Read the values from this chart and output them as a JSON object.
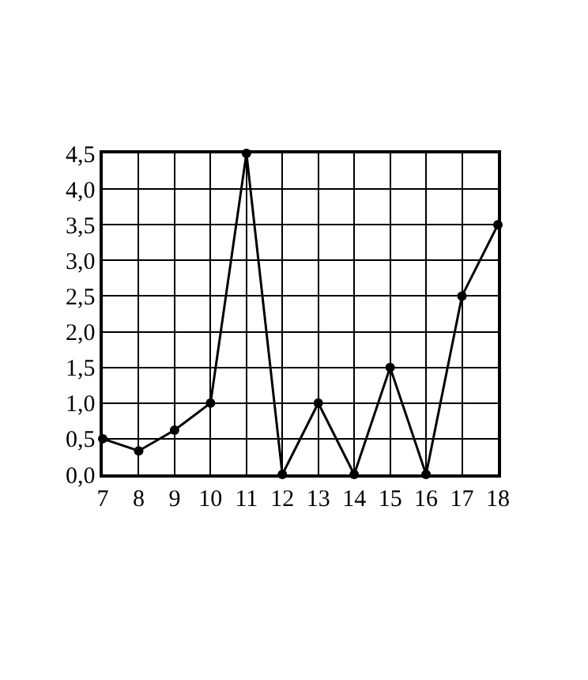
{
  "chart_data": {
    "type": "line",
    "x": [
      7,
      8,
      9,
      10,
      11,
      12,
      13,
      14,
      15,
      16,
      17,
      18
    ],
    "values": [
      0.5,
      0.33,
      0.62,
      1.0,
      4.5,
      0,
      1.0,
      0,
      1.5,
      0,
      2.5,
      3.5
    ],
    "color": "#000000",
    "marker": "circle",
    "line_style": "solid",
    "grid": true,
    "xlim": [
      7,
      18
    ],
    "xticks": [
      7,
      8,
      9,
      10,
      11,
      12,
      13,
      14,
      15,
      16,
      17,
      18
    ],
    "ylim": [
      0,
      4.5
    ],
    "yticks": [
      {
        "value": 0,
        "label": "0,0"
      },
      {
        "value": 0.5,
        "label": "0,5"
      },
      {
        "value": 1,
        "label": "1,0"
      },
      {
        "value": 1.5,
        "label": "1,5"
      },
      {
        "value": 2,
        "label": "2,0"
      },
      {
        "value": 2.5,
        "label": "2,5"
      },
      {
        "value": 3,
        "label": "3,0"
      },
      {
        "value": 3.5,
        "label": "3,5"
      },
      {
        "value": 4,
        "label": "4,0"
      },
      {
        "value": 4.5,
        "label": "4,5"
      }
    ]
  }
}
